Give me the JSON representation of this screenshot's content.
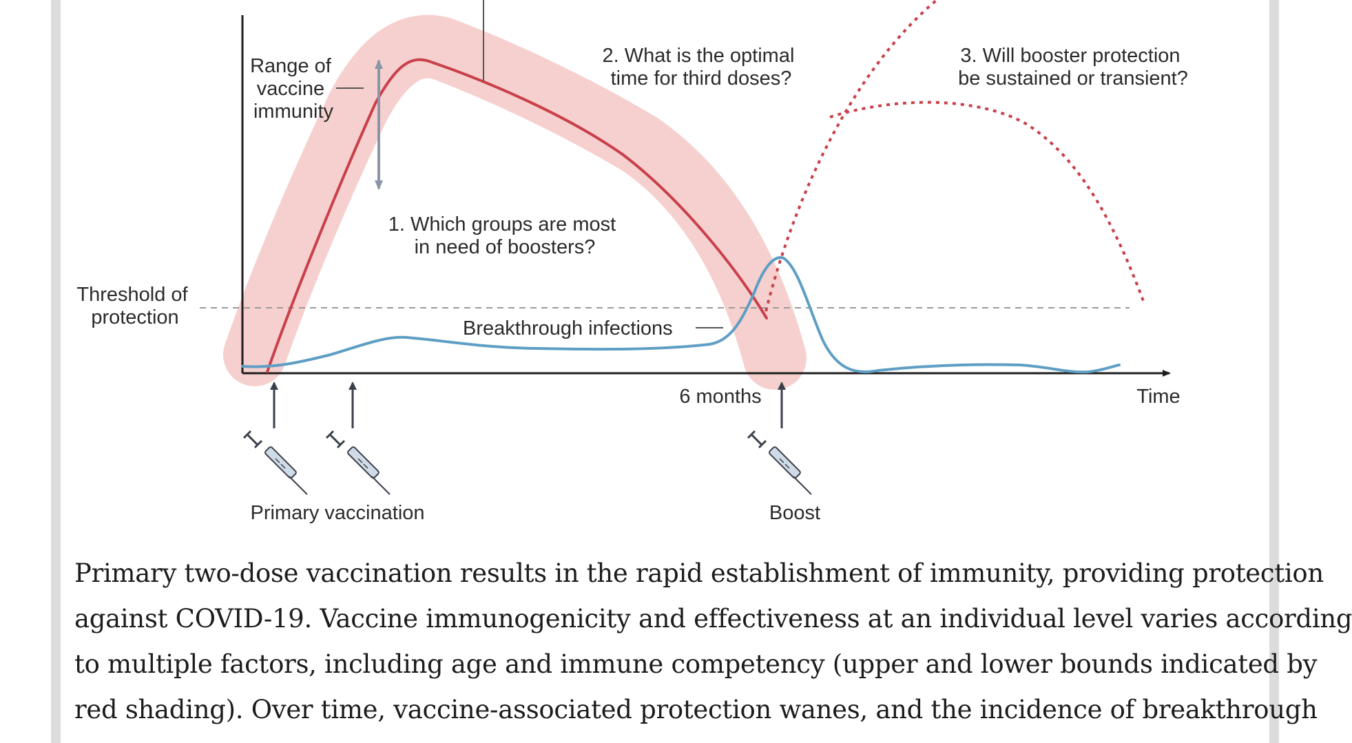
{
  "diagram": {
    "annotations": {
      "range_label": [
        "Range of",
        "vaccine",
        "immunity"
      ],
      "threshold_label": [
        "Threshold of",
        "protection"
      ],
      "question_1": [
        "1. Which groups are most",
        "in need of boosters?"
      ],
      "question_2": [
        "2. What is the optimal",
        "time for third doses?"
      ],
      "question_3": [
        "3. Will booster protection",
        "be sustained or transient?"
      ],
      "breakthrough_label": "Breakthrough infections",
      "six_months_label": "6 months",
      "time_axis_label": "Time",
      "primary_vaccination_label": "Primary vaccination",
      "boost_label": "Boost"
    },
    "colors": {
      "immunity_line": "#c9404a",
      "immunity_band": "#f6d0cf",
      "infection_line": "#5f9ec4",
      "axis": "#1e1e1e",
      "threshold_line": "#9a9a9a",
      "arrow": "#8a96a8"
    },
    "icons": [
      "syringe-icon",
      "syringe-icon",
      "syringe-icon"
    ]
  },
  "caption": {
    "lines": [
      "Primary two-dose vaccination results in the rapid establishment of immunity, providing protection",
      "against COVID-19. Vaccine immunogenicity and effectiveness at an individual level varies according",
      "to multiple factors, including age and immune competency (upper and lower bounds indicated by",
      "red shading). Over time, vaccine-associated protection wanes, and the incidence of breakthrough"
    ]
  }
}
